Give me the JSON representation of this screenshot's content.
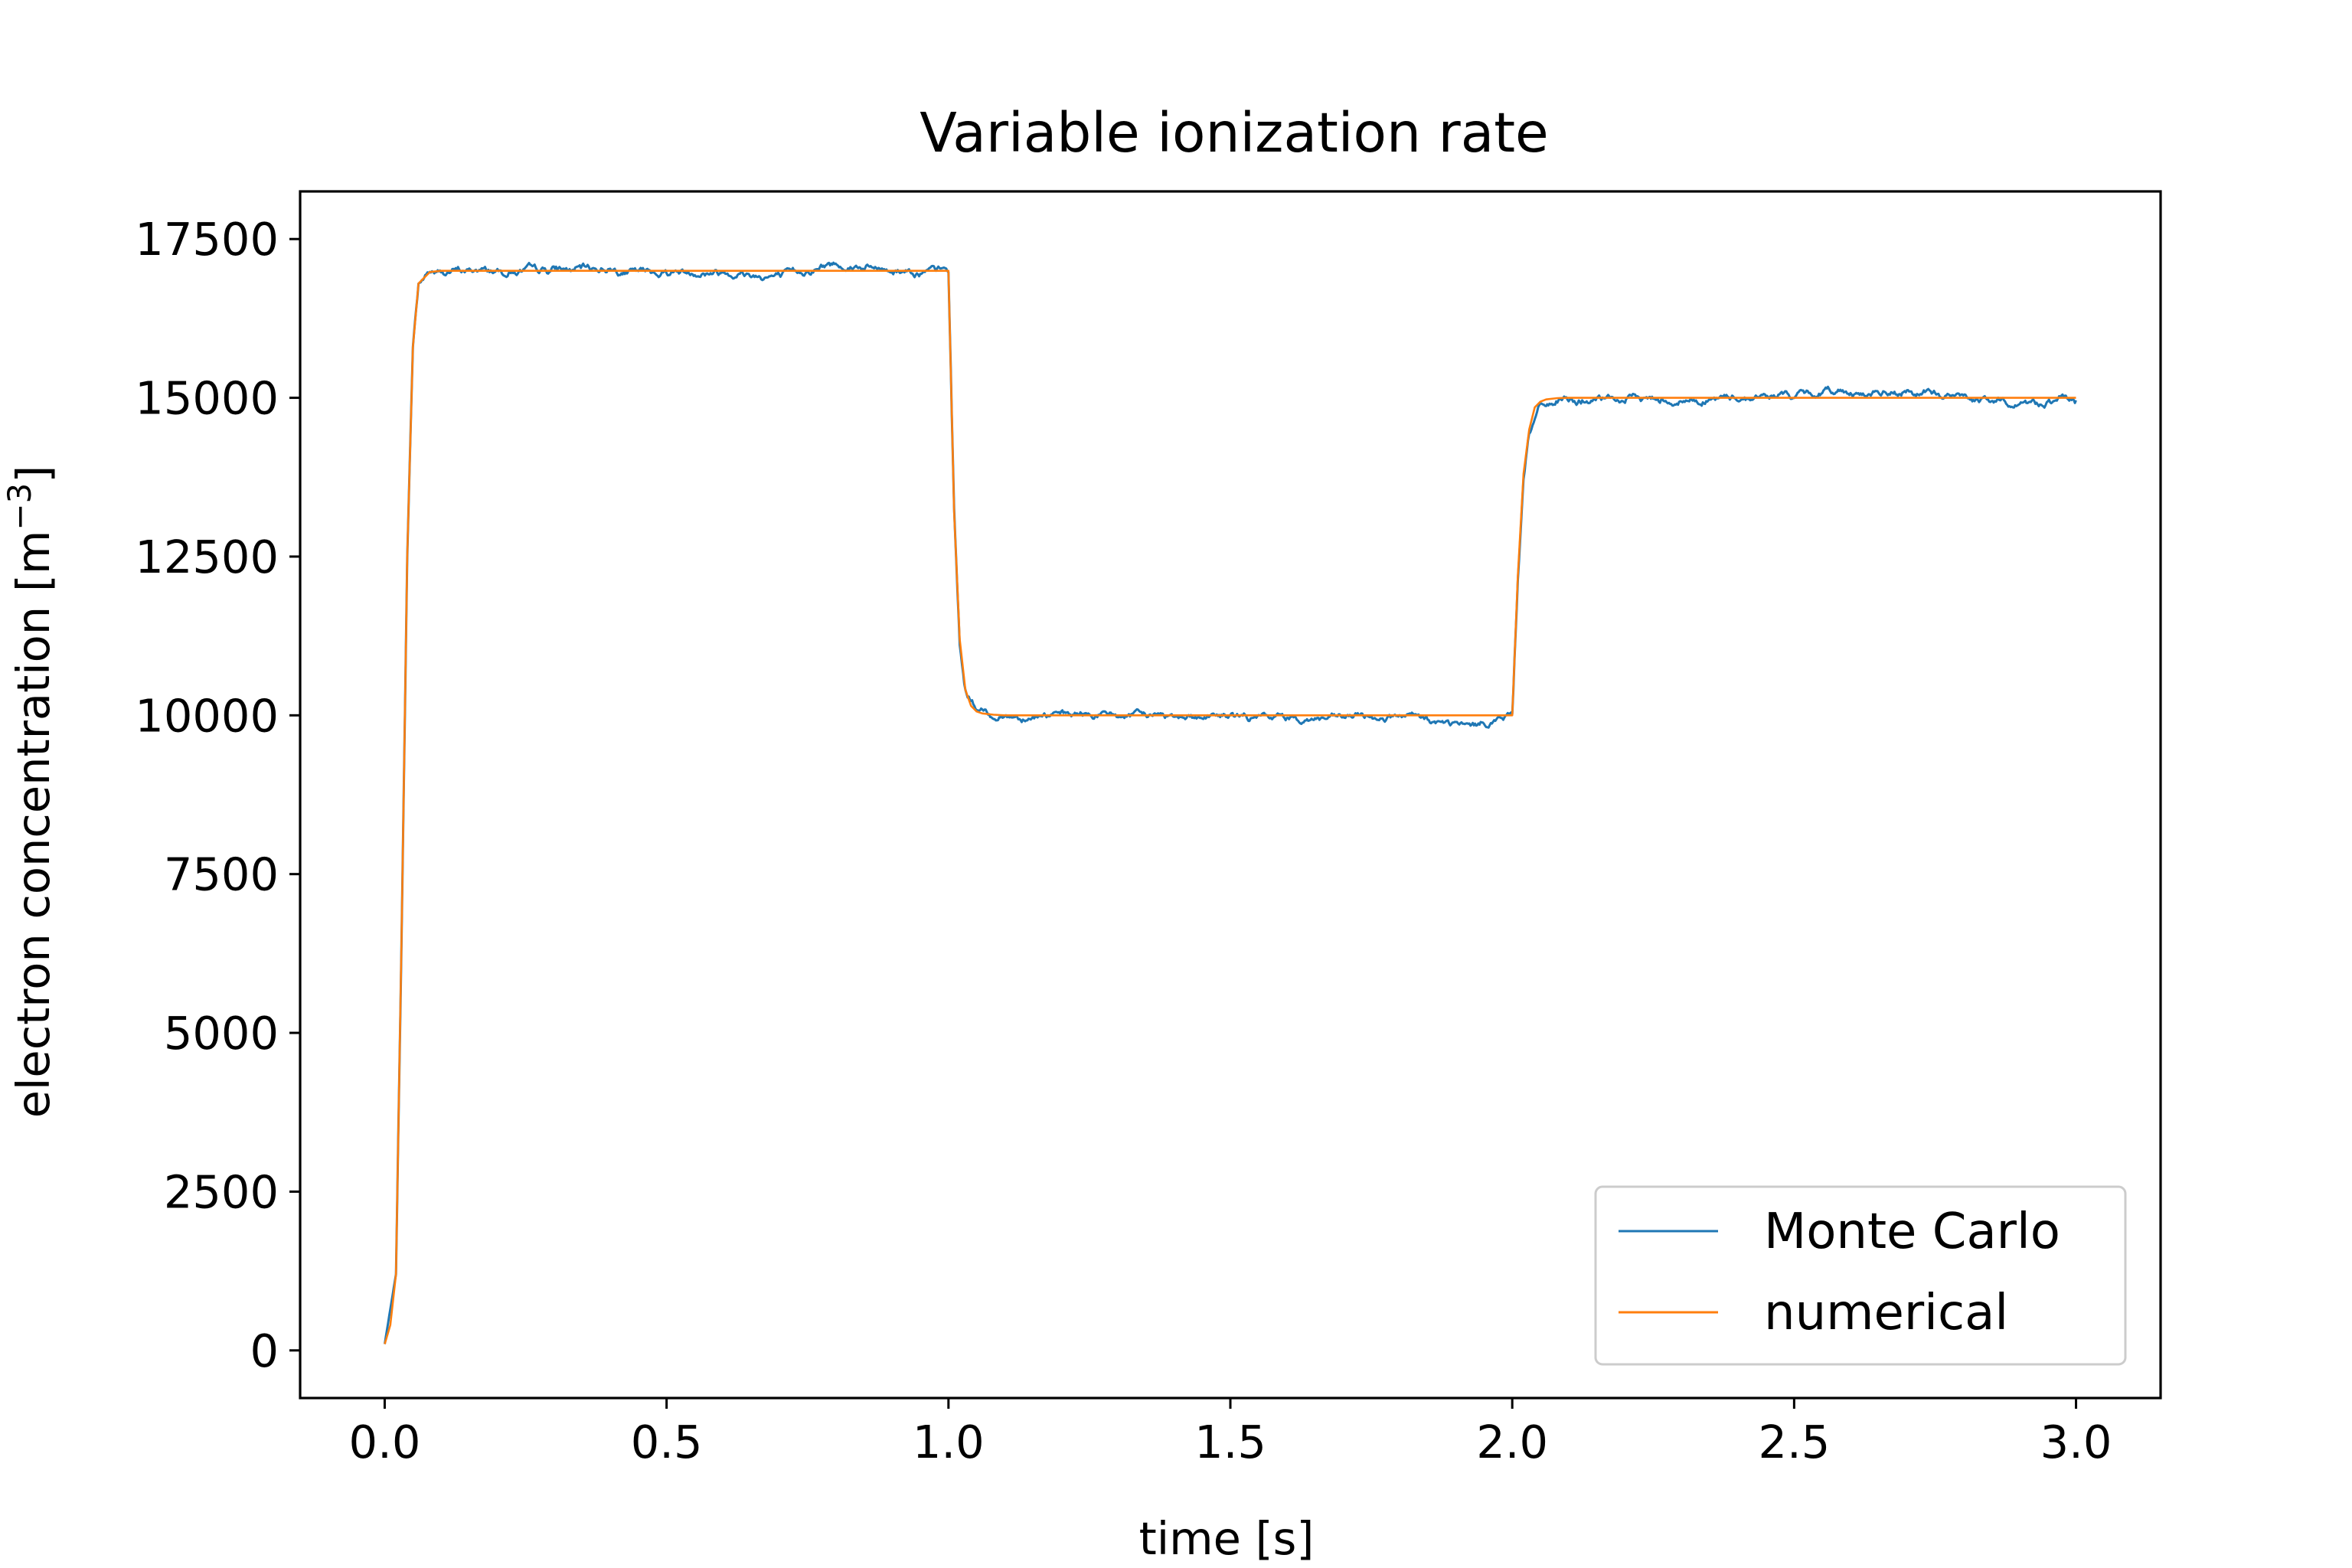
{
  "chart_data": {
    "type": "line",
    "title": "Variable ionization rate",
    "xlabel": "time [s]",
    "ylabel": "electron concentration [m",
    "ylabel_superscript": "−3",
    "ylabel_close": "]",
    "xlim": [
      -0.15,
      3.15
    ],
    "ylim": [
      -750,
      18250
    ],
    "xticks": [
      0.0,
      0.5,
      1.0,
      1.5,
      2.0,
      2.5,
      3.0
    ],
    "xtick_labels": [
      "0.0",
      "0.5",
      "1.0",
      "1.5",
      "2.0",
      "2.5",
      "3.0"
    ],
    "yticks": [
      0,
      2500,
      5000,
      7500,
      10000,
      12500,
      15000,
      17500
    ],
    "ytick_labels": [
      "0",
      "2500",
      "5000",
      "7500",
      "10000",
      "12500",
      "15000",
      "17500"
    ],
    "grid": false,
    "legend_position": "bottom-right",
    "series": [
      {
        "name": "Monte Carlo",
        "color": "#1f77b4",
        "style": "noisy",
        "x": [
          0.0,
          0.02,
          0.03,
          0.04,
          0.05,
          0.06,
          0.08,
          0.15,
          0.3,
          0.5,
          0.7,
          0.8,
          0.9,
          0.99,
          1.0,
          1.01,
          1.02,
          1.03,
          1.05,
          1.08,
          1.2,
          1.5,
          1.8,
          1.92,
          1.99,
          2.0,
          2.01,
          2.02,
          2.03,
          2.05,
          2.08,
          2.3,
          2.6,
          2.8,
          3.0
        ],
        "y": [
          100,
          1200,
          6500,
          12500,
          15800,
          16800,
          17000,
          17000,
          17050,
          17000,
          16950,
          17100,
          16950,
          17000,
          16950,
          13200,
          11100,
          10400,
          10100,
          10000,
          10000,
          9950,
          10000,
          9850,
          10000,
          10050,
          12200,
          13800,
          14500,
          14900,
          15000,
          14950,
          15100,
          15000,
          14950
        ]
      },
      {
        "name": "numerical",
        "color": "#ff7f0e",
        "style": "smooth",
        "x": [
          0.0,
          0.01,
          0.02,
          0.03,
          0.04,
          0.05,
          0.06,
          0.08,
          0.1,
          0.5,
          1.0,
          1.01,
          1.02,
          1.03,
          1.04,
          1.05,
          1.06,
          1.08,
          1.1,
          1.5,
          2.0,
          2.01,
          2.02,
          2.03,
          2.04,
          2.05,
          2.06,
          2.08,
          2.1,
          2.5,
          3.0
        ],
        "y": [
          100,
          400,
          1200,
          6500,
          12500,
          15800,
          16800,
          16980,
          17000,
          17000,
          17000,
          13200,
          11200,
          10400,
          10150,
          10060,
          10030,
          10010,
          10000,
          10000,
          10000,
          12200,
          13800,
          14500,
          14850,
          14940,
          14975,
          14995,
          15000,
          15000,
          15000
        ]
      }
    ]
  }
}
